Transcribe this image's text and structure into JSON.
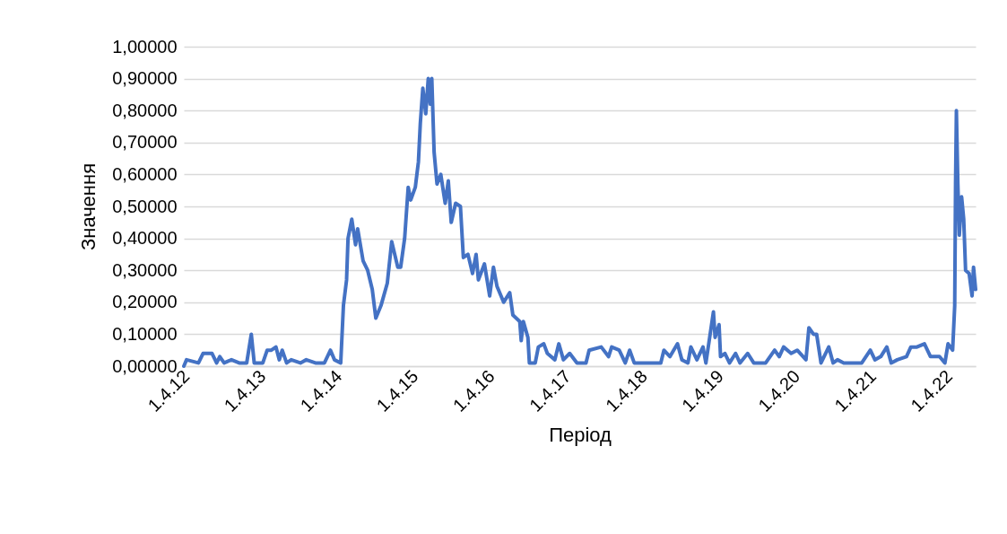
{
  "chart_data": {
    "type": "line",
    "xlabel": "Період",
    "ylabel": "Значення",
    "x": [
      "2012-03-20",
      "2012-04-02",
      "2012-05-29",
      "2012-06-20",
      "2012-08-02",
      "2012-08-24",
      "2012-09-08",
      "2012-09-29",
      "2012-11-03",
      "2012-12-10",
      "2013-01-15",
      "2013-02-06",
      "2013-02-20",
      "2013-04-02",
      "2013-04-23",
      "2013-05-13",
      "2013-06-04",
      "2013-06-20",
      "2013-07-04",
      "2013-07-25",
      "2013-08-16",
      "2013-09-29",
      "2013-10-27",
      "2013-12-10",
      "2014-01-22",
      "2014-02-20",
      "2014-03-11",
      "2014-04-10",
      "2014-04-23",
      "2014-05-08",
      "2014-05-15",
      "2014-06-02",
      "2014-06-20",
      "2014-06-30",
      "2014-07-26",
      "2014-08-17",
      "2014-09-08",
      "2014-09-25",
      "2014-10-20",
      "2014-11-19",
      "2014-12-10",
      "2015-01-08",
      "2015-01-22",
      "2015-02-10",
      "2015-02-27",
      "2015-03-11",
      "2015-04-02",
      "2015-04-17",
      "2015-04-26",
      "2015-05-08",
      "2015-05-22",
      "2015-06-03",
      "2015-06-13",
      "2015-06-20",
      "2015-07-01",
      "2015-07-15",
      "2015-08-02",
      "2015-08-23",
      "2015-09-07",
      "2015-09-21",
      "2015-10-12",
      "2015-11-04",
      "2015-11-18",
      "2015-12-10",
      "2016-01-01",
      "2016-01-18",
      "2016-01-29",
      "2016-02-27",
      "2016-03-23",
      "2016-04-10",
      "2016-04-27",
      "2016-05-29",
      "2016-06-27",
      "2016-07-12",
      "2016-08-14",
      "2016-08-21",
      "2016-08-31",
      "2016-09-22",
      "2016-09-29",
      "2016-10-27",
      "2016-11-11",
      "2016-12-07",
      "2016-12-24",
      "2017-01-29",
      "2017-02-17",
      "2017-03-11",
      "2017-04-10",
      "2017-05-15",
      "2017-06-27",
      "2017-07-12",
      "2017-09-08",
      "2017-10-13",
      "2017-10-28",
      "2017-12-03",
      "2018-01-01",
      "2018-01-22",
      "2018-02-13",
      "2018-04-10",
      "2018-06-06",
      "2018-06-20",
      "2018-07-05",
      "2018-08-03",
      "2018-09-08",
      "2018-09-29",
      "2018-10-28",
      "2018-11-11",
      "2018-12-10",
      "2019-01-08",
      "2019-01-22",
      "2019-02-09",
      "2019-02-27",
      "2019-03-07",
      "2019-03-26",
      "2019-04-02",
      "2019-04-23",
      "2019-05-15",
      "2019-06-13",
      "2019-07-04",
      "2019-08-10",
      "2019-09-08",
      "2019-11-04",
      "2019-12-17",
      "2020-01-08",
      "2020-01-29",
      "2020-03-05",
      "2020-04-03",
      "2020-05-15",
      "2020-05-29",
      "2020-06-20",
      "2020-07-05",
      "2020-07-26",
      "2020-09-01",
      "2020-09-22",
      "2020-10-13",
      "2020-11-12",
      "2021-02-06",
      "2021-03-19",
      "2021-04-10",
      "2021-05-08",
      "2021-06-06",
      "2021-06-27",
      "2021-07-26",
      "2021-09-08",
      "2021-09-29",
      "2021-10-28",
      "2021-12-03",
      "2022-01-01",
      "2022-02-13",
      "2022-03-11",
      "2022-03-26",
      "2022-04-17",
      "2022-04-27",
      "2022-05-01",
      "2022-05-05",
      "2022-05-12",
      "2022-05-19",
      "2022-05-30",
      "2022-06-09",
      "2022-06-18",
      "2022-07-05",
      "2022-07-19",
      "2022-07-26",
      "2022-08-05"
    ],
    "series": [
      {
        "color": "#4472c4",
        "values": [
          0.0,
          0.02,
          0.01,
          0.04,
          0.04,
          0.01,
          0.03,
          0.01,
          0.02,
          0.01,
          0.01,
          0.1,
          0.01,
          0.01,
          0.05,
          0.05,
          0.06,
          0.02,
          0.05,
          0.01,
          0.02,
          0.01,
          0.02,
          0.01,
          0.01,
          0.05,
          0.02,
          0.01,
          0.19,
          0.27,
          0.4,
          0.46,
          0.38,
          0.43,
          0.33,
          0.3,
          0.24,
          0.15,
          0.19,
          0.26,
          0.39,
          0.31,
          0.31,
          0.4,
          0.56,
          0.52,
          0.56,
          0.64,
          0.76,
          0.87,
          0.79,
          0.9,
          0.82,
          0.9,
          0.67,
          0.57,
          0.6,
          0.51,
          0.58,
          0.45,
          0.51,
          0.5,
          0.34,
          0.35,
          0.29,
          0.35,
          0.27,
          0.32,
          0.22,
          0.31,
          0.25,
          0.2,
          0.23,
          0.16,
          0.14,
          0.08,
          0.14,
          0.09,
          0.01,
          0.01,
          0.06,
          0.07,
          0.04,
          0.02,
          0.07,
          0.02,
          0.04,
          0.01,
          0.01,
          0.05,
          0.06,
          0.03,
          0.06,
          0.05,
          0.01,
          0.05,
          0.01,
          0.01,
          0.01,
          0.01,
          0.05,
          0.03,
          0.07,
          0.02,
          0.01,
          0.06,
          0.02,
          0.06,
          0.01,
          0.09,
          0.17,
          0.09,
          0.13,
          0.03,
          0.04,
          0.01,
          0.04,
          0.01,
          0.04,
          0.01,
          0.01,
          0.05,
          0.03,
          0.06,
          0.04,
          0.05,
          0.02,
          0.12,
          0.1,
          0.1,
          0.01,
          0.06,
          0.01,
          0.02,
          0.01,
          0.01,
          0.05,
          0.02,
          0.03,
          0.06,
          0.01,
          0.02,
          0.03,
          0.06,
          0.06,
          0.07,
          0.03,
          0.03,
          0.01,
          0.07,
          0.05,
          0.19,
          0.57,
          0.8,
          0.57,
          0.41,
          0.53,
          0.46,
          0.3,
          0.29,
          0.22,
          0.31,
          0.24
        ]
      }
    ],
    "xlim": [
      "2012-03-20",
      "2022-08-05"
    ],
    "xticks": [
      {
        "value": "2012-04-01",
        "label": "1.4.12"
      },
      {
        "value": "2013-04-01",
        "label": "1.4.13"
      },
      {
        "value": "2014-04-01",
        "label": "1.4.14"
      },
      {
        "value": "2015-04-01",
        "label": "1.4.15"
      },
      {
        "value": "2016-04-01",
        "label": "1.4.16"
      },
      {
        "value": "2017-04-01",
        "label": "1.4.17"
      },
      {
        "value": "2018-04-01",
        "label": "1.4.18"
      },
      {
        "value": "2019-04-01",
        "label": "1.4.19"
      },
      {
        "value": "2020-04-01",
        "label": "1.4.20"
      },
      {
        "value": "2021-04-01",
        "label": "1.4.21"
      },
      {
        "value": "2022-04-01",
        "label": "1.4.22"
      }
    ],
    "ylim": [
      0,
      1
    ],
    "yticks": [
      {
        "value": 0,
        "label": "0,00000"
      },
      {
        "value": 0.1,
        "label": "0,10000"
      },
      {
        "value": 0.2,
        "label": "0,20000"
      },
      {
        "value": 0.3,
        "label": "0,30000"
      },
      {
        "value": 0.4,
        "label": "0,40000"
      },
      {
        "value": 0.5,
        "label": "0,50000"
      },
      {
        "value": 0.6,
        "label": "0,60000"
      },
      {
        "value": 0.7,
        "label": "0,70000"
      },
      {
        "value": 0.8,
        "label": "0,80000"
      },
      {
        "value": 0.9,
        "label": "0,90000"
      },
      {
        "value": 1,
        "label": "1,00000"
      }
    ],
    "grid": "y",
    "marker": "none",
    "line_style": "solid"
  }
}
